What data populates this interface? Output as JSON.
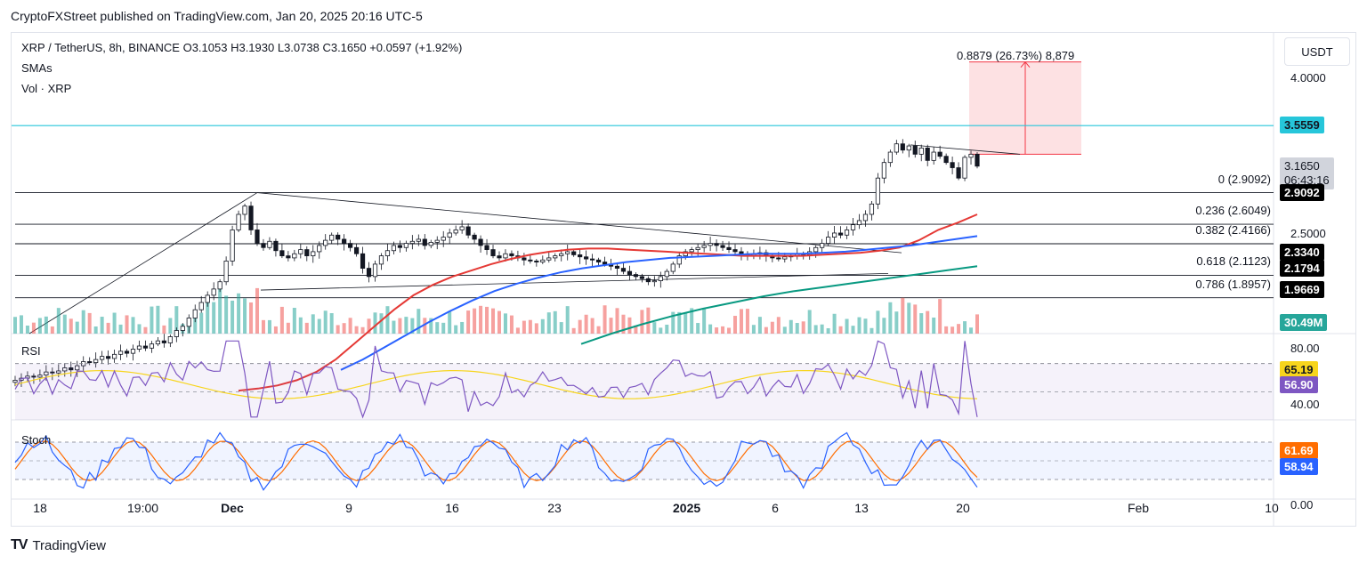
{
  "header": {
    "text": "CryptoFXStreet published on TradingView.com, Jan 20, 2025 20:16 UTC-5"
  },
  "legend": {
    "symbol_line": "XRP / TetherUS, 8h, BINANCE  O3.1053  H3.1930  L3.0738  C3.1650  +0.0597 (+1.92%)",
    "smas": "SMAs",
    "vol": "Vol · XRP"
  },
  "currency_button": "USDT",
  "measure_label": "0.8879 (26.73%) 8,879",
  "fib_levels": [
    {
      "ratio": "0",
      "label": "0 (2.9092)",
      "price": 2.9092
    },
    {
      "ratio": "0.236",
      "label": "0.236 (2.6049)",
      "price": 2.6049
    },
    {
      "ratio": "0.382",
      "label": "0.382 (2.4166)",
      "price": 2.4166
    },
    {
      "ratio": "0.618",
      "label": "0.618 (2.1123)",
      "price": 2.1123
    },
    {
      "ratio": "0.786",
      "label": "0.786 (1.8957)",
      "price": 1.8957
    }
  ],
  "price_axis": {
    "ticks": [
      "4.0000",
      "2.5000"
    ],
    "labels": [
      {
        "text": "3.5559",
        "bg": "#26c6da",
        "fg": "#131722",
        "price": 3.5559
      },
      {
        "text": "3.1650",
        "bg": "#d1d4dc",
        "fg": "#131722",
        "price": 3.165,
        "sub": "06:43:16"
      },
      {
        "text": "2.9092",
        "bg": "#000000",
        "fg": "#ffffff",
        "price": 2.9092
      },
      {
        "text": "2.3340",
        "bg": "#000000",
        "fg": "#ffffff",
        "price": 2.334
      },
      {
        "text": "2.1794",
        "bg": "#000000",
        "fg": "#ffffff",
        "price": 2.1794
      },
      {
        "text": "1.9669",
        "bg": "#000000",
        "fg": "#ffffff",
        "price": 1.9669
      },
      {
        "text": "30.49M",
        "bg": "#26a69a",
        "fg": "#ffffff"
      }
    ]
  },
  "rsi_panel": {
    "title": "RSI",
    "ticks": [
      "80.00",
      "40.00"
    ],
    "labels": [
      {
        "text": "65.19",
        "bg": "#f7d51d",
        "fg": "#131722"
      },
      {
        "text": "56.90",
        "bg": "#7e57c2",
        "fg": "#ffffff"
      }
    ]
  },
  "stoch_panel": {
    "title": "Stoch",
    "ticks": [
      "0.00"
    ],
    "labels": [
      {
        "text": "61.69",
        "bg": "#ff6d00",
        "fg": "#ffffff"
      },
      {
        "text": "58.94",
        "bg": "#2962ff",
        "fg": "#ffffff"
      }
    ]
  },
  "time_axis": [
    "18",
    "19:00",
    "Dec",
    "9",
    "16",
    "23",
    "2025",
    "6",
    "13",
    "20",
    "Feb",
    "10"
  ],
  "footer": {
    "logo": "TV",
    "brand": "TradingView"
  },
  "colors": {
    "sma_fast": "#e53935",
    "sma_mid": "#2962ff",
    "sma_slow": "#089981",
    "up": "#26a69a",
    "down": "#ef5350",
    "rsi": "#7e57c2",
    "rsi_ma": "#f7d51d",
    "stoch_k": "#2962ff",
    "stoch_d": "#ff6d00",
    "resistance": "#26c6da"
  },
  "chart_data": {
    "type": "candlestick",
    "symbol": "XRP / TetherUS",
    "interval": "8h",
    "exchange": "BINANCE",
    "ohlc_last": {
      "open": 3.1053,
      "high": 3.193,
      "low": 3.0738,
      "close": 3.165,
      "change": 0.0597,
      "change_pct": 1.92
    },
    "price_range": [
      1.55,
      4.45
    ],
    "horizontal_lines": [
      3.5559
    ],
    "measure": {
      "from": 3.28,
      "to": 4.17,
      "value": 0.8879,
      "pct": 26.73
    },
    "close_series": [
      1.1,
      1.12,
      1.14,
      1.13,
      1.15,
      1.18,
      1.17,
      1.19,
      1.22,
      1.2,
      1.24,
      1.28,
      1.27,
      1.3,
      1.33,
      1.31,
      1.35,
      1.38,
      1.36,
      1.4,
      1.43,
      1.41,
      1.45,
      1.48,
      1.46,
      1.52,
      1.58,
      1.62,
      1.7,
      1.78,
      1.85,
      1.92,
      1.98,
      2.05,
      2.25,
      2.55,
      2.7,
      2.78,
      2.55,
      2.42,
      2.38,
      2.44,
      2.35,
      2.3,
      2.28,
      2.32,
      2.36,
      2.3,
      2.34,
      2.4,
      2.45,
      2.5,
      2.46,
      2.42,
      2.38,
      2.32,
      2.18,
      2.1,
      2.22,
      2.3,
      2.35,
      2.4,
      2.38,
      2.42,
      2.44,
      2.46,
      2.4,
      2.43,
      2.45,
      2.48,
      2.52,
      2.55,
      2.58,
      2.5,
      2.46,
      2.4,
      2.36,
      2.3,
      2.28,
      2.32,
      2.3,
      2.28,
      2.26,
      2.25,
      2.24,
      2.26,
      2.28,
      2.3,
      2.32,
      2.34,
      2.31,
      2.29,
      2.27,
      2.26,
      2.24,
      2.22,
      2.2,
      2.18,
      2.15,
      2.12,
      2.1,
      2.08,
      2.05,
      2.06,
      2.1,
      2.15,
      2.22,
      2.3,
      2.34,
      2.36,
      2.38,
      2.4,
      2.42,
      2.4,
      2.38,
      2.36,
      2.34,
      2.32,
      2.3,
      2.32,
      2.33,
      2.3,
      2.28,
      2.27,
      2.29,
      2.3,
      2.32,
      2.31,
      2.34,
      2.38,
      2.42,
      2.48,
      2.52,
      2.5,
      2.55,
      2.6,
      2.64,
      2.7,
      2.8,
      3.05,
      3.2,
      3.3,
      3.38,
      3.32,
      3.36,
      3.28,
      3.34,
      3.22,
      3.3,
      3.26,
      3.2,
      3.15,
      3.05,
      3.25,
      3.28,
      3.165
    ],
    "sma_fast": [
      1.0,
      1.02,
      1.05,
      1.1,
      1.18,
      1.3,
      1.46,
      1.62,
      1.78,
      1.92,
      2.02,
      2.1,
      2.16,
      2.22,
      2.27,
      2.31,
      2.34,
      2.36,
      2.37,
      2.37,
      2.36,
      2.35,
      2.34,
      2.33,
      2.32,
      2.31,
      2.3,
      2.3,
      2.3,
      2.3,
      2.31,
      2.32,
      2.33,
      2.35,
      2.38,
      2.45,
      2.55,
      2.62,
      2.7
    ],
    "sma_mid": [
      1.2,
      1.3,
      1.42,
      1.54,
      1.66,
      1.77,
      1.87,
      1.96,
      2.03,
      2.09,
      2.14,
      2.18,
      2.21,
      2.24,
      2.26,
      2.28,
      2.29,
      2.3,
      2.31,
      2.32,
      2.32,
      2.32,
      2.33,
      2.34,
      2.36,
      2.38,
      2.4,
      2.43,
      2.46,
      2.49
    ],
    "sma_slow": [
      1.45,
      1.55,
      1.64,
      1.72,
      1.79,
      1.85,
      1.91,
      1.96,
      2.0,
      2.04,
      2.08,
      2.12,
      2.16,
      2.2
    ],
    "rsi_range": [
      30,
      90
    ],
    "rsi_last": 56.9,
    "rsi_ma_last": 65.19,
    "stoch_range": [
      0,
      100
    ],
    "stoch_k_last": 58.94,
    "stoch_d_last": 61.69
  }
}
